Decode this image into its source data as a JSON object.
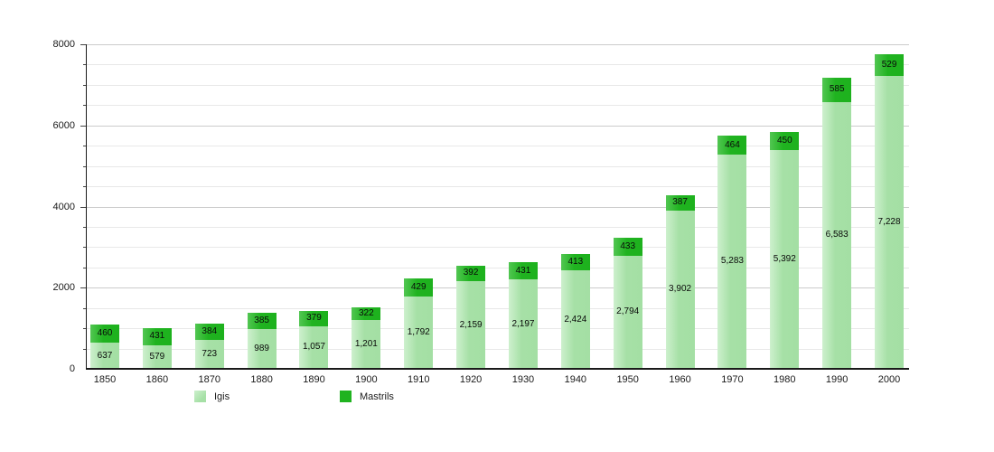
{
  "chart_data": {
    "type": "bar",
    "stacked": true,
    "title": "",
    "xlabel": "",
    "ylabel": "",
    "categories": [
      "1850",
      "1860",
      "1870",
      "1880",
      "1890",
      "1900",
      "1910",
      "1920",
      "1930",
      "1940",
      "1950",
      "1960",
      "1970",
      "1980",
      "1990",
      "2000"
    ],
    "series": [
      {
        "name": "Igis",
        "color": "#a6e0a6",
        "values": [
          637,
          579,
          723,
          989,
          1057,
          1201,
          1792,
          2159,
          2197,
          2424,
          2794,
          3902,
          5283,
          5392,
          6583,
          7228
        ],
        "labels": [
          "637",
          "579",
          "723",
          "989",
          "1,057",
          "1,201",
          "1,792",
          "2,159",
          "2,197",
          "2,424",
          "2,794",
          "3,902",
          "5,283",
          "5,392",
          "6,583",
          "7,228"
        ]
      },
      {
        "name": "Mastrils",
        "color": "#20b320",
        "values": [
          460,
          431,
          384,
          385,
          379,
          322,
          429,
          392,
          431,
          413,
          433,
          387,
          464,
          450,
          585,
          529
        ],
        "labels": [
          "460",
          "431",
          "384",
          "385",
          "379",
          "322",
          "429",
          "392",
          "431",
          "413",
          "433",
          "387",
          "464",
          "450",
          "585",
          "529"
        ]
      }
    ],
    "ylim": [
      0,
      8000
    ],
    "yticks": [
      0,
      2000,
      4000,
      6000,
      8000
    ],
    "ytick_labels": [
      "0",
      "2000",
      "4000",
      "6000",
      "8000"
    ],
    "minor_grid_step": 500,
    "grid": true,
    "legend_position": "bottom",
    "colors": {
      "grid_major": "#cccccc",
      "grid_minor": "#e8e8e8",
      "axis": "#1a1a1a",
      "igis_fill": "#a6e0a6",
      "mastrils_fill": "#20b320"
    }
  }
}
